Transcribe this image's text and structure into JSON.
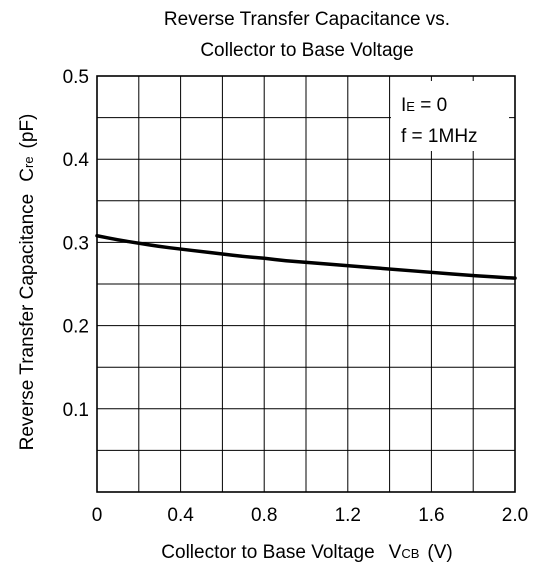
{
  "chart_data": {
    "type": "line",
    "title": [
      "Reverse Transfer Capacitance vs.",
      "Collector to Base Voltage"
    ],
    "xlabel": {
      "prefix": "Collector to Base Voltage",
      "symbol": "V",
      "subscript": "CB",
      "unit": "(V)"
    },
    "ylabel": {
      "prefix": "Reverse Transfer Capacitance",
      "symbol": "C",
      "subscript": "re",
      "unit": "(pF)"
    },
    "xlim": [
      0,
      2.0
    ],
    "ylim": [
      0,
      0.5
    ],
    "x_ticks": [
      0,
      0.4,
      0.8,
      1.2,
      1.6,
      2.0
    ],
    "x_tick_labels": [
      "0",
      "0.4",
      "0.8",
      "1.2",
      "1.6",
      "2.0"
    ],
    "y_ticks": [
      0.1,
      0.2,
      0.3,
      0.4,
      0.5
    ],
    "y_tick_labels": [
      "0.1",
      "0.2",
      "0.3",
      "0.4",
      "0.5"
    ],
    "grid": true,
    "x_grid_step": 0.2,
    "y_grid_step": 0.05,
    "annotations": [
      {
        "symbol": "I",
        "subscript": "E",
        "text": " = 0"
      },
      {
        "text": "f = 1MHz"
      }
    ],
    "series": [
      {
        "x": [
          0,
          0.1,
          0.2,
          0.3,
          0.4,
          0.5,
          0.6,
          0.7,
          0.8,
          0.9,
          1.0,
          1.2,
          1.4,
          1.6,
          1.8,
          2.0
        ],
        "y": [
          0.308,
          0.303,
          0.299,
          0.295,
          0.292,
          0.289,
          0.286,
          0.283,
          0.281,
          0.278,
          0.276,
          0.272,
          0.268,
          0.264,
          0.26,
          0.257
        ]
      }
    ]
  }
}
